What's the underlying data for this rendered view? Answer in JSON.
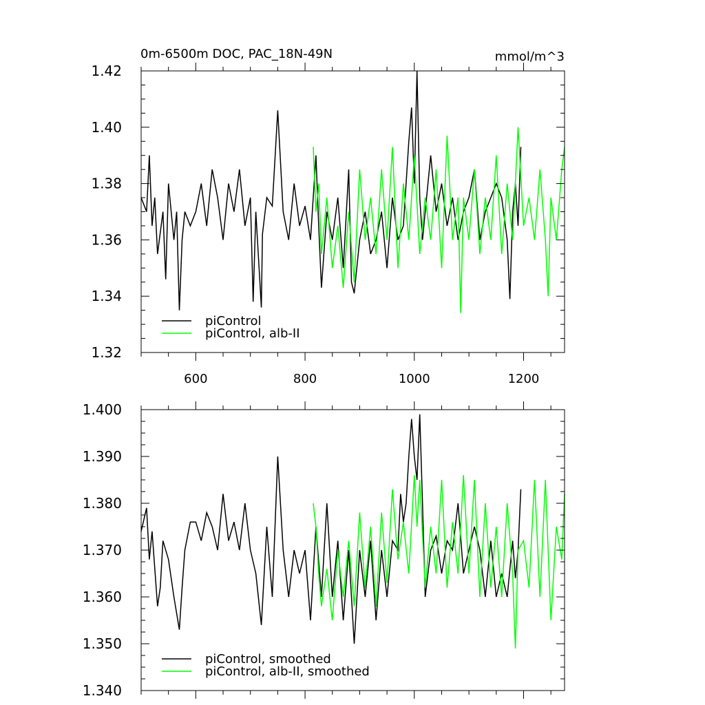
{
  "chart_data": [
    {
      "type": "line",
      "title": "0m-6500m DOC, PAC_18N-49N",
      "units": "mmol/m^3",
      "xlim": [
        500,
        1275
      ],
      "ylim": [
        1.32,
        1.42
      ],
      "x_ticks": [
        600,
        800,
        1000,
        1200
      ],
      "x_tick_labels": [
        "600",
        "800",
        "1000",
        "1200"
      ],
      "y_ticks": [
        1.32,
        1.34,
        1.36,
        1.38,
        1.4,
        1.42
      ],
      "y_tick_labels": [
        "1.32",
        "1.34",
        "1.36",
        "1.38",
        "1.40",
        "1.42"
      ],
      "grid": false,
      "legend_placement": "bottom-left",
      "series": [
        {
          "name": "piControl",
          "color": "#000000",
          "x": [
            500,
            510,
            515,
            520,
            525,
            530,
            540,
            545,
            550,
            560,
            565,
            570,
            575,
            580,
            590,
            600,
            610,
            620,
            630,
            640,
            650,
            660,
            670,
            680,
            690,
            700,
            705,
            710,
            720,
            722,
            730,
            740,
            750,
            760,
            770,
            780,
            790,
            800,
            810,
            820,
            825,
            830,
            840,
            850,
            860,
            870,
            880,
            885,
            890,
            900,
            910,
            920,
            930,
            940,
            950,
            960,
            970,
            980,
            990,
            995,
            1000,
            1005,
            1010,
            1015,
            1020,
            1030,
            1040,
            1050,
            1060,
            1070,
            1080,
            1090,
            1100,
            1110,
            1120,
            1130,
            1140,
            1150,
            1160,
            1170,
            1175,
            1180,
            1185,
            1190,
            1195
          ],
          "values": [
            1.375,
            1.37,
            1.39,
            1.365,
            1.375,
            1.355,
            1.37,
            1.346,
            1.38,
            1.36,
            1.37,
            1.335,
            1.36,
            1.37,
            1.365,
            1.37,
            1.38,
            1.365,
            1.385,
            1.375,
            1.36,
            1.38,
            1.37,
            1.385,
            1.365,
            1.375,
            1.338,
            1.37,
            1.336,
            1.362,
            1.375,
            1.372,
            1.406,
            1.37,
            1.36,
            1.38,
            1.365,
            1.372,
            1.36,
            1.39,
            1.365,
            1.343,
            1.37,
            1.36,
            1.375,
            1.35,
            1.385,
            1.345,
            1.341,
            1.36,
            1.37,
            1.355,
            1.36,
            1.37,
            1.35,
            1.375,
            1.36,
            1.365,
            1.395,
            1.407,
            1.38,
            1.42,
            1.375,
            1.36,
            1.37,
            1.39,
            1.37,
            1.38,
            1.365,
            1.375,
            1.36,
            1.37,
            1.375,
            1.385,
            1.36,
            1.37,
            1.375,
            1.38,
            1.375,
            1.36,
            1.339,
            1.37,
            1.38,
            1.365,
            1.393
          ]
        },
        {
          "name": "piControl, alb-II",
          "color": "#00ff00",
          "x": [
            815,
            820,
            825,
            830,
            840,
            850,
            860,
            870,
            880,
            890,
            900,
            910,
            920,
            930,
            940,
            950,
            960,
            970,
            980,
            990,
            1000,
            1010,
            1020,
            1030,
            1040,
            1050,
            1060,
            1070,
            1080,
            1085,
            1090,
            1100,
            1110,
            1120,
            1130,
            1140,
            1150,
            1160,
            1170,
            1180,
            1190,
            1200,
            1210,
            1220,
            1230,
            1240,
            1245,
            1250,
            1260,
            1270,
            1275
          ],
          "values": [
            1.393,
            1.37,
            1.38,
            1.355,
            1.375,
            1.35,
            1.365,
            1.343,
            1.37,
            1.345,
            1.385,
            1.36,
            1.375,
            1.355,
            1.385,
            1.36,
            1.393,
            1.35,
            1.38,
            1.36,
            1.39,
            1.355,
            1.375,
            1.36,
            1.385,
            1.35,
            1.397,
            1.36,
            1.375,
            1.334,
            1.375,
            1.36,
            1.385,
            1.355,
            1.375,
            1.36,
            1.39,
            1.355,
            1.38,
            1.36,
            1.4,
            1.365,
            1.375,
            1.36,
            1.385,
            1.36,
            1.34,
            1.375,
            1.36,
            1.385,
            1.393
          ]
        }
      ]
    },
    {
      "type": "line",
      "xlim": [
        500,
        1275
      ],
      "ylim": [
        1.34,
        1.4
      ],
      "x_ticks": [
        600,
        800,
        1000,
        1200
      ],
      "y_ticks": [
        1.34,
        1.35,
        1.36,
        1.37,
        1.38,
        1.39,
        1.4
      ],
      "y_tick_labels": [
        "1.340",
        "1.350",
        "1.360",
        "1.370",
        "1.380",
        "1.390",
        "1.400"
      ],
      "grid": false,
      "legend_placement": "bottom-left",
      "series": [
        {
          "name": "piControl, smoothed",
          "color": "#000000",
          "x": [
            500,
            510,
            515,
            520,
            530,
            535,
            540,
            550,
            560,
            570,
            575,
            580,
            590,
            600,
            610,
            620,
            630,
            640,
            650,
            660,
            670,
            680,
            690,
            700,
            710,
            720,
            730,
            740,
            750,
            760,
            770,
            780,
            790,
            800,
            810,
            820,
            830,
            840,
            850,
            860,
            870,
            880,
            890,
            900,
            910,
            920,
            930,
            940,
            950,
            960,
            970,
            975,
            980,
            985,
            990,
            995,
            1000,
            1005,
            1010,
            1015,
            1020,
            1030,
            1040,
            1050,
            1060,
            1070,
            1080,
            1090,
            1100,
            1110,
            1120,
            1130,
            1140,
            1150,
            1160,
            1170,
            1180,
            1185,
            1190,
            1195
          ],
          "values": [
            1.374,
            1.379,
            1.368,
            1.374,
            1.358,
            1.362,
            1.372,
            1.368,
            1.36,
            1.353,
            1.362,
            1.37,
            1.376,
            1.376,
            1.372,
            1.378,
            1.375,
            1.37,
            1.382,
            1.372,
            1.376,
            1.37,
            1.38,
            1.37,
            1.365,
            1.354,
            1.375,
            1.36,
            1.39,
            1.37,
            1.36,
            1.37,
            1.365,
            1.37,
            1.355,
            1.375,
            1.36,
            1.38,
            1.36,
            1.372,
            1.355,
            1.37,
            1.35,
            1.37,
            1.36,
            1.372,
            1.355,
            1.37,
            1.36,
            1.372,
            1.37,
            1.382,
            1.376,
            1.38,
            1.39,
            1.398,
            1.39,
            1.385,
            1.399,
            1.38,
            1.36,
            1.37,
            1.373,
            1.365,
            1.372,
            1.37,
            1.38,
            1.365,
            1.37,
            1.375,
            1.37,
            1.36,
            1.372,
            1.36,
            1.365,
            1.36,
            1.372,
            1.364,
            1.37,
            1.383
          ]
        },
        {
          "name": "piControl, alb-II, smoothed",
          "color": "#00ff00",
          "x": [
            815,
            820,
            825,
            830,
            840,
            850,
            860,
            870,
            880,
            890,
            900,
            910,
            920,
            930,
            940,
            950,
            960,
            970,
            980,
            990,
            1000,
            1005,
            1010,
            1020,
            1030,
            1040,
            1050,
            1060,
            1070,
            1080,
            1090,
            1100,
            1110,
            1120,
            1130,
            1140,
            1150,
            1160,
            1170,
            1180,
            1185,
            1190,
            1200,
            1210,
            1220,
            1230,
            1240,
            1250,
            1260,
            1270,
            1275
          ],
          "values": [
            1.38,
            1.375,
            1.365,
            1.358,
            1.366,
            1.355,
            1.37,
            1.36,
            1.372,
            1.358,
            1.378,
            1.362,
            1.375,
            1.358,
            1.378,
            1.363,
            1.383,
            1.368,
            1.376,
            1.365,
            1.386,
            1.375,
            1.385,
            1.362,
            1.375,
            1.365,
            1.385,
            1.362,
            1.376,
            1.365,
            1.386,
            1.365,
            1.385,
            1.36,
            1.38,
            1.362,
            1.375,
            1.36,
            1.38,
            1.365,
            1.349,
            1.37,
            1.372,
            1.362,
            1.385,
            1.36,
            1.385,
            1.355,
            1.375,
            1.368,
            1.382
          ]
        }
      ]
    }
  ]
}
